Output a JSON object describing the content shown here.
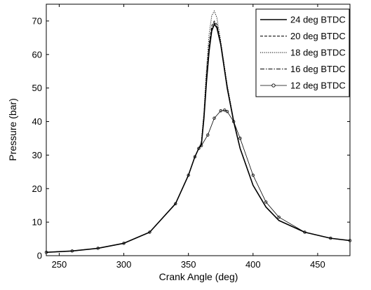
{
  "chart_data": {
    "type": "line",
    "title": "",
    "xlabel": "Crank Angle (deg)",
    "ylabel": "Pressure (bar)",
    "xlim": [
      240,
      475
    ],
    "ylim": [
      0,
      75
    ],
    "x_ticks": [
      250,
      300,
      350,
      400,
      450
    ],
    "y_ticks": [
      0,
      10,
      20,
      30,
      40,
      50,
      60,
      70
    ],
    "grid": false,
    "legend_position": "top-right",
    "series": [
      {
        "name": "24 deg BTDC",
        "style": "solid",
        "linewidth": 1.6,
        "x": [
          240,
          260,
          280,
          300,
          320,
          340,
          350,
          355,
          358,
          360,
          362,
          364,
          366,
          368,
          370,
          372,
          375,
          380,
          385,
          390,
          400,
          410,
          420,
          440,
          460,
          475
        ],
        "values": [
          1.0,
          1.4,
          2.2,
          3.7,
          7.0,
          15.5,
          24.0,
          29.5,
          32.0,
          33.0,
          41.0,
          52.0,
          61.0,
          67.0,
          69.0,
          68.0,
          63.0,
          50.0,
          40.0,
          32.0,
          21.0,
          14.5,
          10.5,
          7.0,
          5.2,
          4.5
        ]
      },
      {
        "name": "20 deg BTDC",
        "style": "dashed",
        "linewidth": 1.0,
        "x": [
          240,
          260,
          280,
          300,
          320,
          340,
          350,
          355,
          358,
          360,
          362,
          364,
          366,
          368,
          370,
          372,
          375,
          380,
          385,
          390,
          400,
          410,
          420,
          440,
          460,
          475
        ],
        "values": [
          1.0,
          1.4,
          2.2,
          3.7,
          7.0,
          15.5,
          24.0,
          29.5,
          32.0,
          33.5,
          42.0,
          54.0,
          63.0,
          68.5,
          70.0,
          69.0,
          63.5,
          50.5,
          40.0,
          32.0,
          21.0,
          14.5,
          10.5,
          7.0,
          5.2,
          4.5
        ]
      },
      {
        "name": "18 deg BTDC",
        "style": "dotted",
        "linewidth": 1.0,
        "x": [
          240,
          260,
          280,
          300,
          320,
          340,
          350,
          355,
          358,
          360,
          362,
          364,
          366,
          368,
          370,
          372,
          375,
          380,
          385,
          390,
          400,
          410,
          420,
          440,
          460,
          475
        ],
        "values": [
          1.0,
          1.4,
          2.2,
          3.7,
          7.0,
          15.5,
          24.0,
          29.5,
          32.0,
          34.0,
          43.0,
          56.0,
          66.0,
          71.5,
          73.0,
          71.0,
          64.0,
          51.0,
          40.5,
          32.0,
          21.0,
          14.5,
          10.5,
          7.0,
          5.2,
          4.5
        ]
      },
      {
        "name": "16 deg BTDC",
        "style": "dashdot",
        "linewidth": 1.0,
        "x": [
          240,
          260,
          280,
          300,
          320,
          340,
          350,
          355,
          358,
          360,
          362,
          364,
          366,
          368,
          370,
          372,
          375,
          380,
          385,
          390,
          400,
          410,
          420,
          440,
          460,
          475
        ],
        "values": [
          1.0,
          1.4,
          2.2,
          3.7,
          7.0,
          15.5,
          24.0,
          29.5,
          32.0,
          33.5,
          41.0,
          53.0,
          62.0,
          67.5,
          69.5,
          68.5,
          63.0,
          50.0,
          40.0,
          32.0,
          21.0,
          14.5,
          10.5,
          7.0,
          5.2,
          4.5
        ]
      },
      {
        "name": "12 deg BTDC",
        "style": "solid-circle",
        "linewidth": 0.8,
        "x": [
          240,
          260,
          280,
          300,
          320,
          340,
          350,
          355,
          358,
          360,
          365,
          370,
          375,
          378,
          380,
          385,
          390,
          400,
          410,
          420,
          440,
          460,
          475
        ],
        "values": [
          1.0,
          1.4,
          2.2,
          3.7,
          7.0,
          15.5,
          24.0,
          29.5,
          32.0,
          32.8,
          36.0,
          41.0,
          43.2,
          43.4,
          43.0,
          40.0,
          35.0,
          24.0,
          16.0,
          11.5,
          7.0,
          5.2,
          4.5
        ]
      }
    ]
  }
}
